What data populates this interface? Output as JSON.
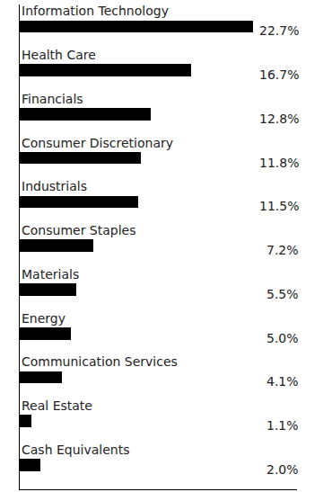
{
  "chart_data": {
    "type": "bar",
    "orientation": "horizontal",
    "categories": [
      "Information Technology",
      "Health Care",
      "Financials",
      "Consumer Discretionary",
      "Industrials",
      "Consumer Staples",
      "Materials",
      "Energy",
      "Communication Services",
      "Real Estate",
      "Cash Equivalents"
    ],
    "values": [
      22.7,
      16.7,
      12.8,
      11.8,
      11.5,
      7.2,
      5.5,
      5.0,
      4.1,
      1.1,
      2.0
    ],
    "value_labels": [
      "22.7%",
      "16.7%",
      "12.8%",
      "11.8%",
      "11.5%",
      "7.2%",
      "5.5%",
      "5.0%",
      "4.1%",
      "1.1%",
      "2.0%"
    ],
    "color": "#000000",
    "xlim": [
      0,
      27
    ],
    "xticks": [],
    "tick_labels": false,
    "data_labels": true,
    "grid": false
  }
}
